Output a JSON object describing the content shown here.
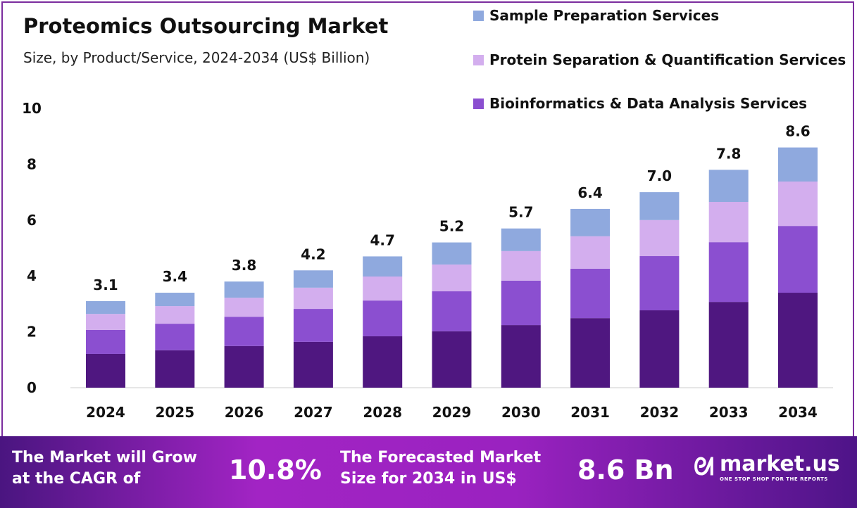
{
  "chart_data": {
    "type": "bar",
    "stacked": true,
    "title": "Proteomics Outsourcing Market",
    "subtitle": "Size, by Product/Service, 2024-2034 (US$ Billion)",
    "categories": [
      "2024",
      "2025",
      "2026",
      "2027",
      "2028",
      "2029",
      "2030",
      "2031",
      "2032",
      "2033",
      "2034"
    ],
    "ylim": [
      0,
      10
    ],
    "yticks": [
      "0",
      "2",
      "4",
      "6",
      "8",
      "10"
    ],
    "grid": false,
    "legend_position": "top-right",
    "series": [
      {
        "values": [
          1.21,
          1.34,
          1.49,
          1.64,
          1.84,
          2.02,
          2.24,
          2.49,
          2.77,
          3.07,
          3.4
        ],
        "color": "#4f1780"
      },
      {
        "name": "Bioinformatics & Data Analysis Services",
        "values": [
          0.86,
          0.95,
          1.05,
          1.18,
          1.28,
          1.43,
          1.59,
          1.77,
          1.94,
          2.14,
          2.39
        ],
        "color": "#8b4fd0"
      },
      {
        "name": "Protein Separation & Quantification Services",
        "values": [
          0.57,
          0.63,
          0.68,
          0.76,
          0.86,
          0.96,
          1.06,
          1.16,
          1.29,
          1.44,
          1.59
        ],
        "color": "#d3aeee"
      },
      {
        "name": "Sample Preparation Services",
        "values": [
          0.46,
          0.48,
          0.58,
          0.62,
          0.72,
          0.79,
          0.81,
          0.98,
          1.0,
          1.15,
          1.22
        ],
        "color": "#8fa9de"
      }
    ],
    "totals": [
      "3.1",
      "3.4",
      "3.8",
      "4.2",
      "4.7",
      "5.2",
      "5.7",
      "6.4",
      "7.0",
      "7.8",
      "8.6"
    ]
  },
  "legend": [
    {
      "label": "Sample Preparation Services",
      "color": "#8fa9de"
    },
    {
      "label": "Protein Separation & Quantification Services",
      "color": "#d3aeee"
    },
    {
      "label": "Bioinformatics & Data Analysis Services",
      "color": "#8b4fd0"
    }
  ],
  "banner": {
    "cagr_text_1": "The Market will Grow",
    "cagr_text_2": "at the CAGR of",
    "cagr": "10.8%",
    "forecast_text_1": "The Forecasted Market",
    "forecast_text_2": "Size for 2034 in US$",
    "forecast": "8.6 Bn",
    "logo": "market.us",
    "logo_tag": "ONE STOP SHOP FOR THE REPORTS"
  }
}
